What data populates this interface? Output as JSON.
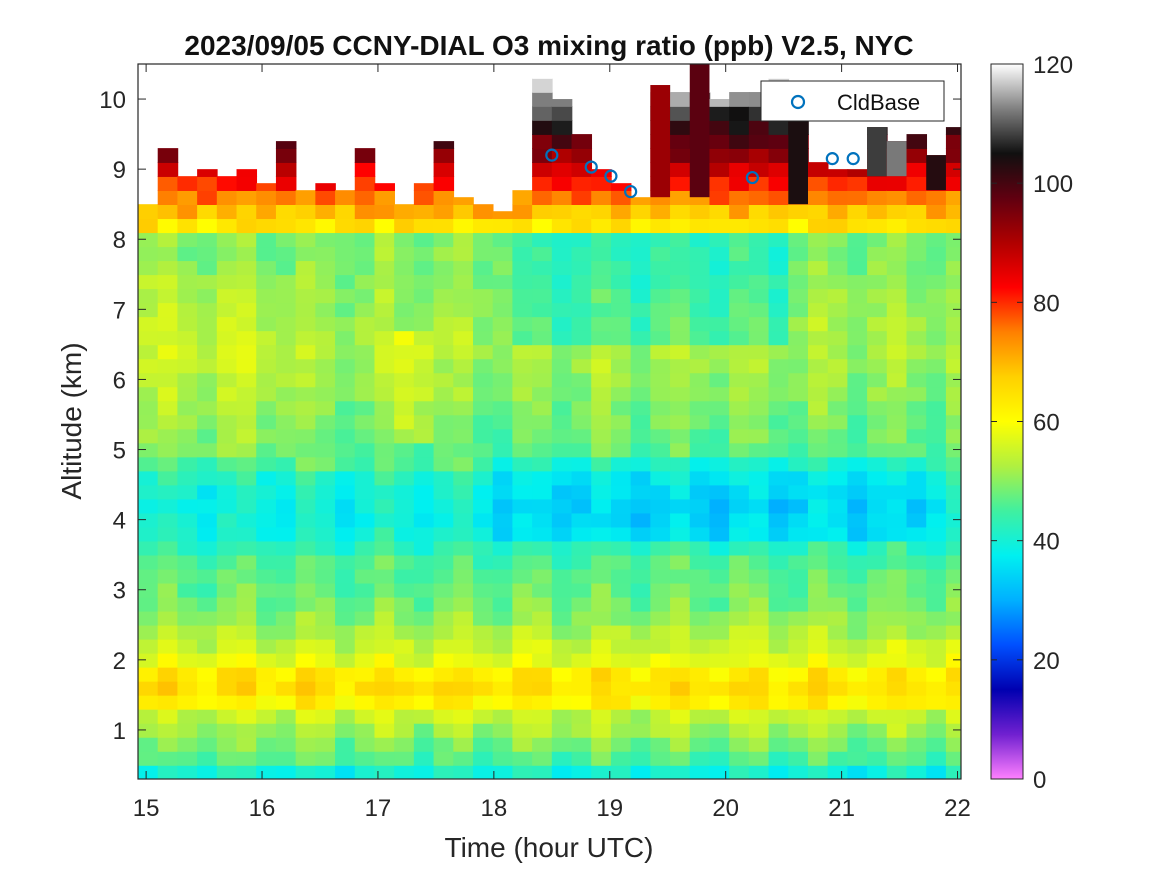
{
  "chart_data": {
    "type": "heatmap",
    "title": "2023/09/05 CCNY-DIAL O3 mixing ratio (ppb) V2.5, NYC",
    "xlabel": "Time (hour UTC)",
    "ylabel": "Altitude (km)",
    "xlim": [
      14.93,
      22.03
    ],
    "ylim": [
      0.3,
      10.5
    ],
    "x_ticks": [
      15,
      16,
      17,
      18,
      19,
      20,
      21,
      22
    ],
    "y_ticks": [
      1,
      2,
      3,
      4,
      5,
      6,
      7,
      8,
      9,
      10
    ],
    "colorbar": {
      "ticks": [
        0,
        20,
        40,
        60,
        80,
        100,
        120
      ],
      "range": [
        0,
        120
      ],
      "colormap": [
        "#ff80ff",
        "#7020d0",
        "#0000b0",
        "#0050ff",
        "#00b0ff",
        "#00f0f0",
        "#40f0a0",
        "#b0f040",
        "#ffff00",
        "#ffd000",
        "#ff8000",
        "#ff0000",
        "#b00000",
        "#600010",
        "#101010",
        "#808080",
        "#ffffff"
      ]
    },
    "grid": false,
    "legend": {
      "entries": [
        "CldBase"
      ],
      "placement": "top-right"
    },
    "time_columns": [
      14.93,
      15.1,
      15.27,
      15.44,
      15.61,
      15.78,
      15.95,
      16.12,
      16.29,
      16.46,
      16.63,
      16.8,
      16.97,
      17.14,
      17.31,
      17.48,
      17.65,
      17.82,
      17.99,
      18.16,
      18.33,
      18.5,
      18.67,
      18.84,
      19.01,
      19.18,
      19.35,
      19.52,
      19.69,
      19.86,
      20.03,
      20.2,
      20.37,
      20.54,
      20.71,
      20.88,
      21.05,
      21.22,
      21.39,
      21.56,
      21.73,
      21.9
    ],
    "column_top_km": [
      8.5,
      9.3,
      8.9,
      9.0,
      8.9,
      9.0,
      8.8,
      9.4,
      8.7,
      8.8,
      8.7,
      9.3,
      8.8,
      8.5,
      8.8,
      9.4,
      8.6,
      8.5,
      8.4,
      8.7,
      10.4,
      10.0,
      9.5,
      9.0,
      8.8,
      8.6,
      10.2,
      10.1,
      10.5,
      10.0,
      10.1,
      10.1,
      10.5,
      9.9,
      9.1,
      9.0,
      9.0,
      9.6,
      9.4,
      9.5,
      9.2,
      9.6
    ],
    "upper_plume": [
      {
        "x0": 19.35,
        "x1": 19.52,
        "y0": 8.6,
        "y1": 10.2,
        "ppb": 92
      },
      {
        "x0": 19.69,
        "x1": 19.86,
        "y0": 8.6,
        "y1": 10.5,
        "ppb": 98
      },
      {
        "x0": 20.54,
        "x1": 20.71,
        "y0": 8.5,
        "y1": 9.9,
        "ppb": 104
      },
      {
        "x0": 21.22,
        "x1": 21.39,
        "y0": 8.9,
        "y1": 9.6,
        "ppb": 108
      },
      {
        "x0": 21.39,
        "x1": 21.56,
        "y0": 8.9,
        "y1": 9.4,
        "ppb": 112
      },
      {
        "x0": 21.73,
        "x1": 21.9,
        "y0": 8.7,
        "y1": 9.2,
        "ppb": 103
      }
    ],
    "cloud_base": {
      "name": "CldBase",
      "x": [
        18.5,
        18.84,
        19.01,
        19.18,
        20.23,
        20.92,
        21.1
      ],
      "y": [
        9.2,
        9.03,
        8.9,
        8.68,
        8.88,
        9.15,
        9.15
      ]
    }
  }
}
